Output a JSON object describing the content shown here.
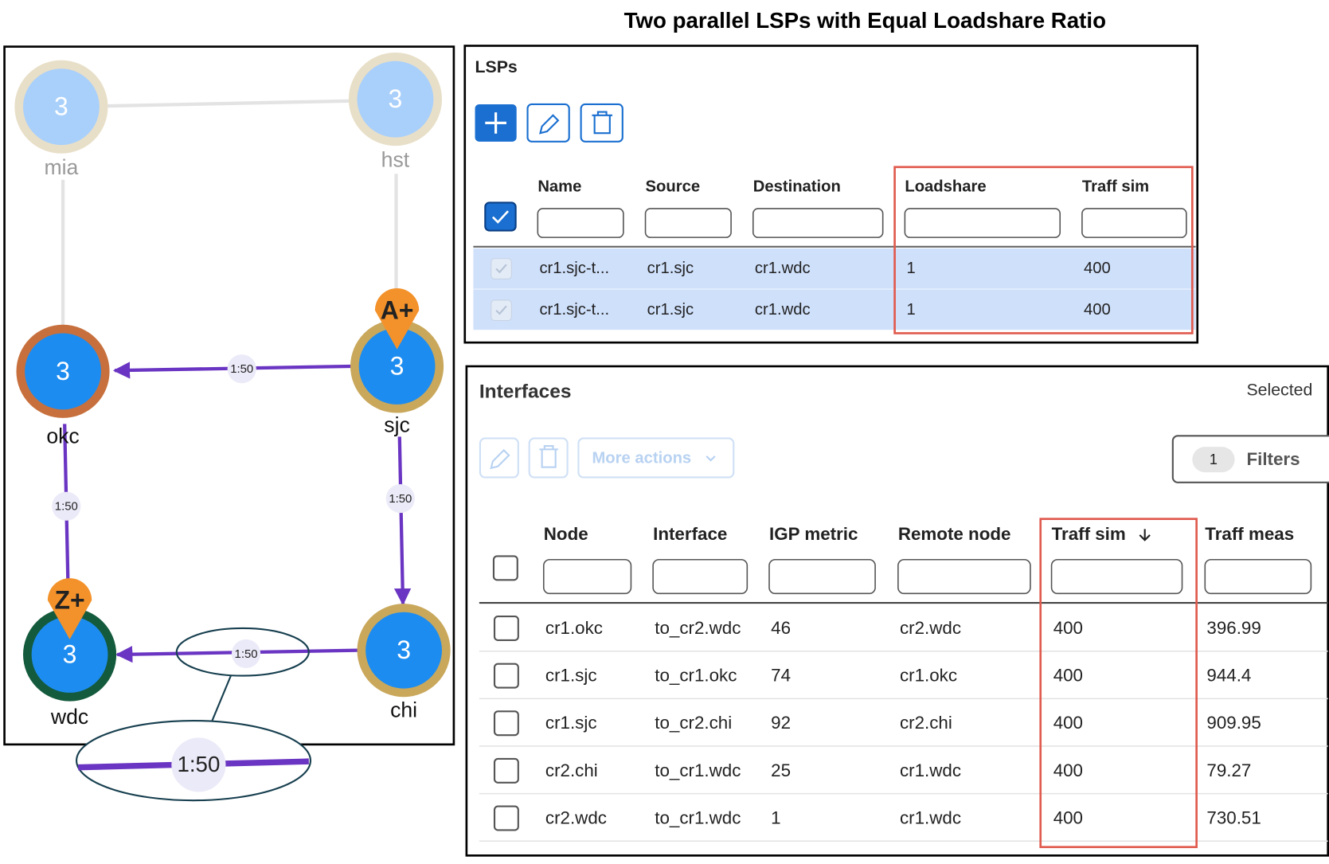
{
  "title": "Two parallel LSPs with Equal Loadshare Ratio",
  "topology": {
    "nodes": [
      {
        "label": "mia",
        "count": "3"
      },
      {
        "label": "hst",
        "count": "3"
      },
      {
        "label": "okc",
        "count": "3"
      },
      {
        "label": "sjc",
        "count": "3"
      },
      {
        "label": "chi",
        "count": "3"
      },
      {
        "label": "wdc",
        "count": "3"
      }
    ],
    "markers": [
      "A+",
      "Z+"
    ],
    "link_labels": [
      "1:50",
      "1:50",
      "1:50",
      "1:50"
    ],
    "zoom_label": "1:50"
  },
  "lsps": {
    "title": "LSPs",
    "columns": [
      "Name",
      "Source",
      "Destination",
      "Loadshare",
      "Traff sim"
    ],
    "rows": [
      [
        "cr1.sjc-t...",
        "cr1.sjc",
        "cr1.wdc",
        1,
        400
      ],
      [
        "cr1.sjc-t...",
        "cr1.sjc",
        "cr1.wdc",
        1,
        400
      ]
    ]
  },
  "interfaces": {
    "title": "Interfaces",
    "selected": "Selected",
    "more_actions": "More actions",
    "filter_count": "1",
    "filters": "Filters",
    "columns": [
      "Node",
      "Interface",
      "IGP metric",
      "Remote node",
      "Traff sim",
      "Traff meas"
    ],
    "rows": [
      [
        "cr1.okc",
        "to_cr2.wdc",
        46,
        "cr2.wdc",
        400,
        396.99
      ],
      [
        "cr1.sjc",
        "to_cr1.okc",
        74,
        "cr1.okc",
        400,
        944.4
      ],
      [
        "cr1.sjc",
        "to_cr2.chi",
        92,
        "cr2.chi",
        400,
        909.95
      ],
      [
        "cr2.chi",
        "to_cr1.wdc",
        25,
        "cr1.wdc",
        400,
        79.27
      ],
      [
        "cr2.wdc",
        "to_cr1.wdc",
        1,
        "cr1.wdc",
        400,
        730.51
      ]
    ]
  }
}
